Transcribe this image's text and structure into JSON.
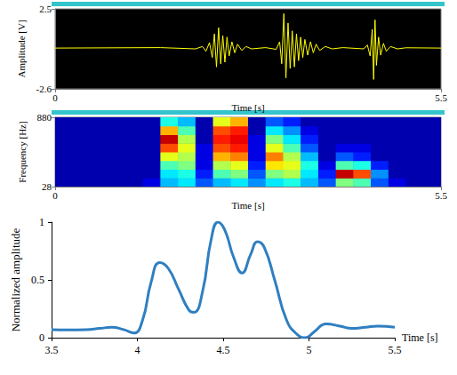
{
  "chart_data": [
    {
      "type": "line",
      "xlabel": "Time [s]",
      "ylabel": "Amplitude [V]",
      "xlim": [
        0,
        5.5
      ],
      "ylim": [
        -2.6,
        2.5
      ],
      "xticks": [
        0,
        5.5
      ],
      "yticks": [
        -2.6,
        2.5
      ],
      "color": "#ffff00",
      "x": [
        0,
        1.5,
        2.0,
        2.1,
        2.15,
        2.2,
        2.24,
        2.27,
        2.3,
        2.33,
        2.36,
        2.39,
        2.42,
        2.45,
        2.48,
        2.52,
        2.56,
        2.6,
        2.66,
        2.72,
        2.8,
        3.0,
        3.15,
        3.2,
        3.23,
        3.26,
        3.29,
        3.32,
        3.35,
        3.38,
        3.41,
        3.44,
        3.47,
        3.5,
        3.53,
        3.56,
        3.6,
        3.64,
        3.68,
        3.72,
        3.77,
        3.85,
        3.95,
        4.1,
        4.4,
        4.45,
        4.49,
        4.52,
        4.54,
        4.56,
        4.58,
        4.61,
        4.64,
        4.68,
        4.72,
        4.78,
        4.88,
        5.0,
        5.5
      ],
      "values": [
        0,
        0.03,
        -0.05,
        0.1,
        -0.2,
        0.35,
        -0.6,
        0.9,
        -1.2,
        1.3,
        -1.0,
        0.8,
        -0.9,
        0.7,
        -0.5,
        0.4,
        -0.3,
        0.25,
        -0.15,
        0.1,
        -0.05,
        0.03,
        -0.08,
        0.4,
        -1.0,
        2.2,
        -1.9,
        1.6,
        -1.3,
        1.1,
        -1.2,
        0.9,
        -0.8,
        0.7,
        -0.6,
        0.55,
        -0.45,
        0.4,
        -0.3,
        0.25,
        -0.15,
        0.1,
        -0.05,
        0.03,
        -0.05,
        0.2,
        -0.5,
        1.2,
        -2.0,
        1.8,
        -1.1,
        0.7,
        -0.45,
        0.3,
        -0.2,
        0.1,
        -0.05,
        0.02,
        0
      ]
    },
    {
      "type": "heatmap",
      "xlabel": "Time [s]",
      "ylabel": "Frequency [Hz]",
      "xlim": [
        0,
        5.5
      ],
      "ylim": [
        28,
        880
      ],
      "xticks": [
        0,
        5.5
      ],
      "yticks": [
        28,
        880
      ],
      "zlim": [
        0,
        1
      ],
      "time_edges": [
        0,
        0.25,
        0.5,
        0.75,
        1.0,
        1.25,
        1.5,
        1.75,
        2.0,
        2.25,
        2.5,
        2.75,
        3.0,
        3.25,
        3.5,
        3.75,
        4.0,
        4.25,
        4.5,
        4.75,
        5.0,
        5.25,
        5.5
      ],
      "freq_edges": [
        28,
        134.5,
        241,
        347.5,
        454,
        560.5,
        667,
        773.5,
        880
      ],
      "cells": [
        [
          0.05,
          0.05,
          0.05,
          0.05,
          0.05,
          0.1,
          0.3,
          0.35,
          0.2,
          0.3,
          0.35,
          0.25,
          0.35,
          0.4,
          0.3,
          0.2,
          0.5,
          0.45,
          0.2,
          0.1,
          0.05,
          0.05
        ],
        [
          0.05,
          0.05,
          0.05,
          0.05,
          0.05,
          0.05,
          0.35,
          0.4,
          0.15,
          0.45,
          0.5,
          0.2,
          0.5,
          0.55,
          0.35,
          0.15,
          0.95,
          0.8,
          0.25,
          0.05,
          0.05,
          0.05
        ],
        [
          0.05,
          0.05,
          0.05,
          0.05,
          0.05,
          0.05,
          0.45,
          0.5,
          0.1,
          0.55,
          0.6,
          0.15,
          0.65,
          0.6,
          0.4,
          0.1,
          0.45,
          0.4,
          0.15,
          0.05,
          0.05,
          0.05
        ],
        [
          0.05,
          0.05,
          0.05,
          0.05,
          0.05,
          0.05,
          0.6,
          0.55,
          0.1,
          0.7,
          0.75,
          0.1,
          0.75,
          0.55,
          0.3,
          0.05,
          0.2,
          0.15,
          0.05,
          0.05,
          0.05,
          0.05
        ],
        [
          0.05,
          0.05,
          0.05,
          0.05,
          0.05,
          0.05,
          0.8,
          0.6,
          0.1,
          0.8,
          0.85,
          0.1,
          0.6,
          0.45,
          0.2,
          0.05,
          0.1,
          0.1,
          0.05,
          0.05,
          0.05,
          0.05
        ],
        [
          0.05,
          0.05,
          0.05,
          0.05,
          0.05,
          0.05,
          0.95,
          0.55,
          0.05,
          0.85,
          0.9,
          0.1,
          0.5,
          0.35,
          0.15,
          0.05,
          0.05,
          0.05,
          0.05,
          0.05,
          0.05,
          0.05
        ],
        [
          0.05,
          0.05,
          0.05,
          0.05,
          0.05,
          0.05,
          0.7,
          0.45,
          0.05,
          0.8,
          0.85,
          0.05,
          0.35,
          0.25,
          0.1,
          0.05,
          0.05,
          0.05,
          0.05,
          0.05,
          0.05,
          0.05
        ],
        [
          0.05,
          0.05,
          0.05,
          0.05,
          0.05,
          0.05,
          0.4,
          0.3,
          0.05,
          0.6,
          0.7,
          0.05,
          0.2,
          0.15,
          0.05,
          0.05,
          0.05,
          0.05,
          0.05,
          0.05,
          0.05,
          0.05
        ]
      ]
    },
    {
      "type": "line",
      "xlabel": "Time [s]",
      "ylabel": "Normalized amplitude",
      "xlim": [
        3.5,
        5.5
      ],
      "ylim": [
        0,
        1
      ],
      "xticks": [
        3.5,
        4,
        4.5,
        5,
        5.5
      ],
      "yticks": [
        0,
        0.5,
        1
      ],
      "color": "#2f7fc1",
      "line_style": "solid",
      "x": [
        3.5,
        3.6,
        3.7,
        3.78,
        3.85,
        3.92,
        3.98,
        4.03,
        4.08,
        4.13,
        4.18,
        4.24,
        4.3,
        4.33,
        4.38,
        4.43,
        4.47,
        4.51,
        4.56,
        4.61,
        4.66,
        4.7,
        4.74,
        4.8,
        4.87,
        4.93,
        4.98,
        5.03,
        5.1,
        5.18,
        5.25,
        5.33,
        5.4,
        5.5
      ],
      "values": [
        0.07,
        0.068,
        0.07,
        0.08,
        0.09,
        0.07,
        0.04,
        0.15,
        0.48,
        0.65,
        0.6,
        0.42,
        0.24,
        0.22,
        0.4,
        0.85,
        1.0,
        0.93,
        0.7,
        0.56,
        0.72,
        0.83,
        0.78,
        0.5,
        0.15,
        0.03,
        0.0,
        0.05,
        0.12,
        0.1,
        0.08,
        0.09,
        0.1,
        0.09
      ]
    }
  ]
}
